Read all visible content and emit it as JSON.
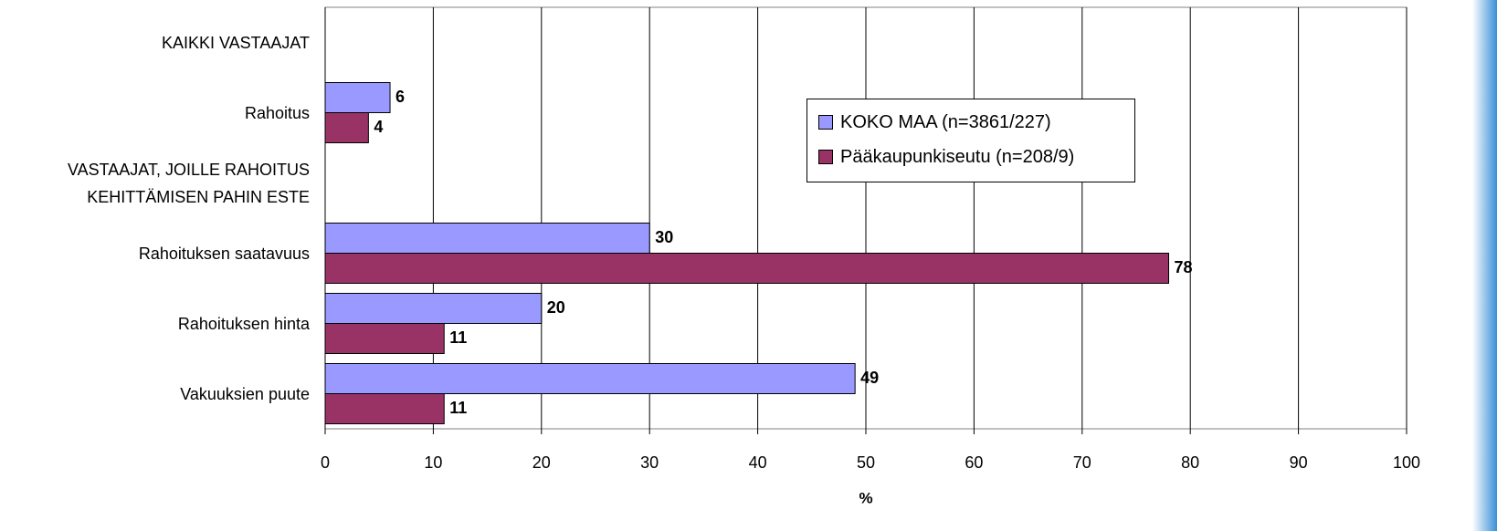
{
  "chart_data": {
    "type": "hbar",
    "categories": [
      "KAIKKI VASTAAJAT",
      "Rahoitus",
      "VASTAAJAT, JOILLE RAHOITUS\nKEHITTÄMISEN PAHIN ESTE",
      "Rahoituksen saatavuus",
      "Rahoituksen hinta",
      "Vakuuksien puute"
    ],
    "series": [
      {
        "name": "KOKO MAA (n=3861/227)",
        "color": "#9999ff",
        "values": [
          null,
          6,
          null,
          30,
          20,
          49
        ]
      },
      {
        "name": "Pääkaupunkiseutu (n=208/9)",
        "color": "#993366",
        "values": [
          null,
          4,
          null,
          78,
          11,
          11
        ]
      }
    ],
    "xlabel": "%",
    "xlim": [
      0,
      100
    ],
    "xticks": [
      0,
      10,
      20,
      30,
      40,
      50,
      60,
      70,
      80,
      90,
      100
    ],
    "grid": true
  }
}
